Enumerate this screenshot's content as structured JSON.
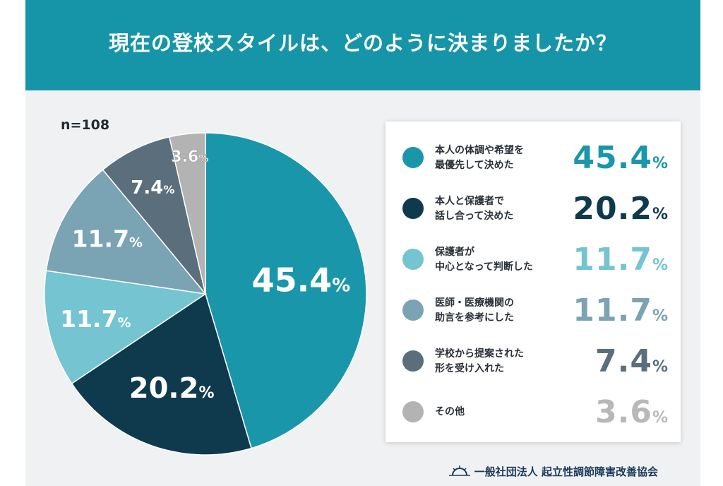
{
  "title": "現在の登校スタイルは、どのように決まりましたか？",
  "sample_size": "n=108",
  "footer": {
    "organization": "一般社団法人 起立性調節障害改善協会",
    "logo_icon": "sunrise-icon"
  },
  "colors": {
    "header": "#1795a8",
    "slice1": "#1a96aa",
    "slice2": "#0f3a4e",
    "slice3": "#74c4d1",
    "slice4": "#7aa3b3",
    "slice5": "#5a6f7b",
    "slice6": "#b3b3b3"
  },
  "chart_data": {
    "type": "pie",
    "title": "現在の登校スタイルは、どのように決まりましたか？",
    "slices": [
      {
        "label": "本人の体調や希望を最優先して決めた",
        "label_lines": [
          "本人の体調や希望を",
          "最優先して決めた"
        ],
        "value": 45.4,
        "display": "45.4",
        "color": "#1a96aa"
      },
      {
        "label": "本人と保護者で話し合って決めた",
        "label_lines": [
          "本人と保護者で",
          "話し合って決めた"
        ],
        "value": 20.2,
        "display": "20.2",
        "color": "#0f3a4e"
      },
      {
        "label": "保護者が中心となって判断した",
        "label_lines": [
          "保護者が",
          "中心となって判断した"
        ],
        "value": 11.7,
        "display": "11.7",
        "color": "#74c4d1"
      },
      {
        "label": "医師・医療機関の助言を参考にした",
        "label_lines": [
          "医師・医療機関の",
          "助言を参考にした"
        ],
        "value": 11.7,
        "display": "11.7",
        "color": "#7aa3b3"
      },
      {
        "label": "学校から提案された形を受け入れた",
        "label_lines": [
          "学校から提案された",
          "形を受け入れた"
        ],
        "value": 7.4,
        "display": "7.4",
        "color": "#5a6f7b"
      },
      {
        "label": "その他",
        "label_lines": [
          "その他"
        ],
        "value": 3.6,
        "display": "3.6",
        "color": "#b3b3b3"
      }
    ],
    "unit": "%",
    "legend_position": "right"
  }
}
